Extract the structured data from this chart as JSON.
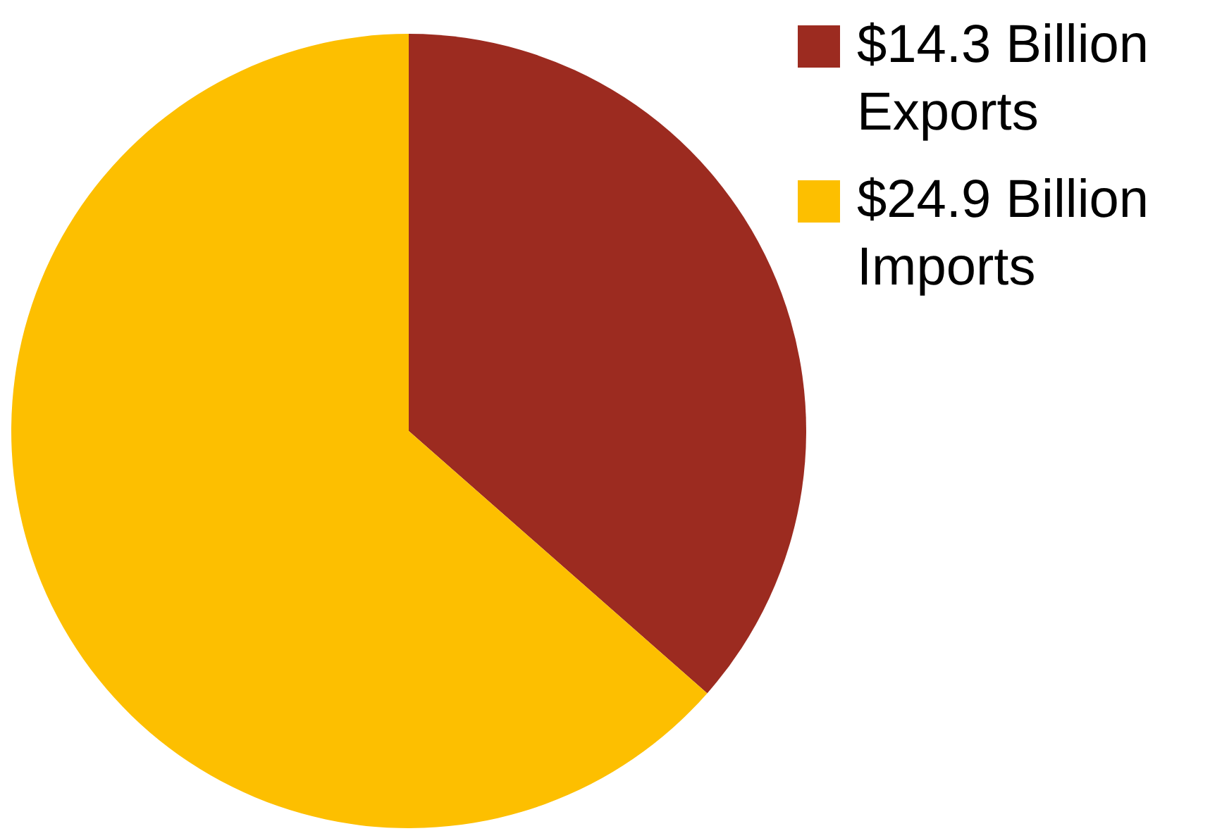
{
  "chart_data": {
    "type": "pie",
    "categories": [
      "$14.3 Billion Exports",
      "$24.9 Billion Imports"
    ],
    "values": [
      14.3,
      24.9
    ],
    "colors": [
      "#9c2b20",
      "#fdbf00"
    ],
    "legend": "top right"
  }
}
